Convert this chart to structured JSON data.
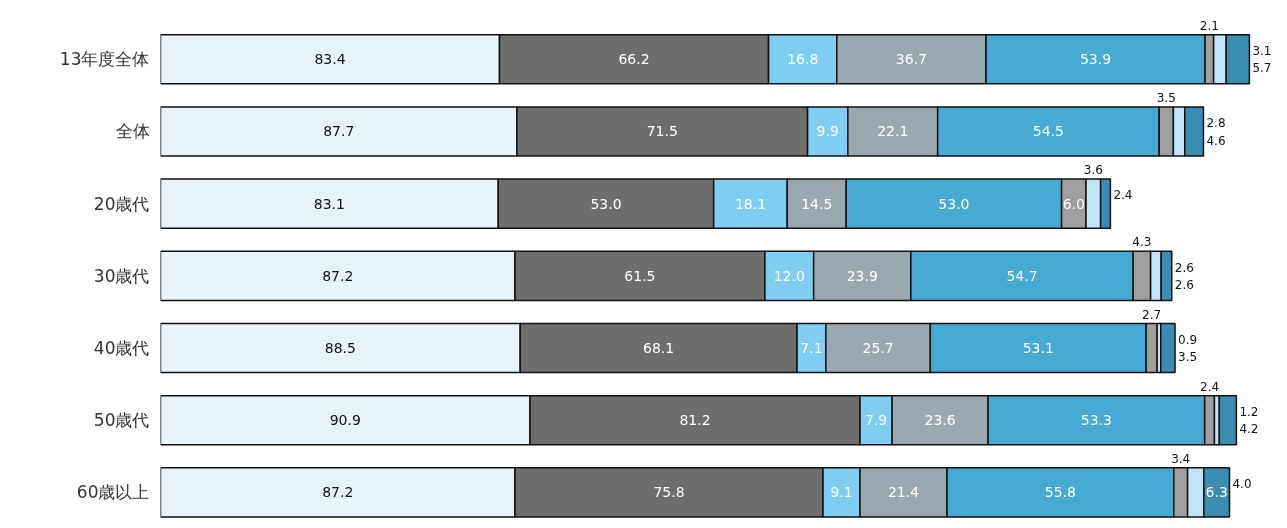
{
  "chart_data": {
    "type": "bar",
    "orientation": "horizontal",
    "stacked": true,
    "grid": false,
    "categories": [
      "13年度全体",
      "全体",
      "20歳代",
      "30歳代",
      "40歳代",
      "50歳代",
      "60歳以上"
    ],
    "series": [
      {
        "color": "#e8f4fb",
        "values": [
          83.4,
          87.7,
          83.1,
          87.2,
          88.5,
          90.9,
          87.2
        ],
        "value_labels": [
          "83.4",
          "87.7",
          "83.1",
          "87.2",
          "88.5",
          "90.9",
          "87.2"
        ]
      },
      {
        "color": "#6e6e6e",
        "values": [
          66.2,
          71.5,
          53.0,
          61.5,
          68.1,
          81.2,
          75.8
        ],
        "value_labels": [
          "66.2",
          "71.5",
          "53.0",
          "61.5",
          "68.1",
          "81.2",
          "75.8"
        ]
      },
      {
        "color": "#80cdf2",
        "values": [
          16.8,
          9.9,
          18.1,
          12.0,
          7.1,
          7.9,
          9.1
        ],
        "value_labels": [
          "16.8",
          "9.9",
          "18.1",
          "12.0",
          "7.1",
          "7.9",
          "9.1"
        ]
      },
      {
        "color": "#9aa9b1",
        "values": [
          36.7,
          22.1,
          14.5,
          23.9,
          25.7,
          23.6,
          21.4
        ],
        "value_labels": [
          "36.7",
          "22.1",
          "14.5",
          "23.9",
          "25.7",
          "23.6",
          "21.4"
        ]
      },
      {
        "color": "#47aad2",
        "values": [
          53.9,
          54.5,
          53.0,
          54.7,
          53.1,
          53.3,
          55.8
        ],
        "value_labels": [
          "53.9",
          "54.5",
          "53.0",
          "54.7",
          "53.1",
          "53.3",
          "55.8"
        ]
      },
      {
        "color": "#a0a0a0",
        "values": [
          2.1,
          3.5,
          6.0,
          4.3,
          2.7,
          2.4,
          3.4
        ],
        "value_labels": [
          "2.1",
          "3.5",
          "6.0",
          "4.3",
          "2.7",
          "2.4",
          "3.4"
        ]
      },
      {
        "color": "#c0e5f8",
        "values": [
          3.1,
          2.8,
          3.6,
          2.6,
          0.9,
          1.2,
          4.0
        ],
        "value_labels": [
          "3.1",
          "2.8",
          "3.6",
          "2.6",
          "0.9",
          "1.2",
          "4.0"
        ]
      },
      {
        "color": "#3a8db0",
        "values": [
          5.7,
          4.6,
          2.4,
          2.6,
          3.5,
          4.2,
          6.3
        ],
        "value_labels": [
          "5.7",
          "4.6",
          "2.4",
          "2.6",
          "3.5",
          "4.2",
          "6.3"
        ]
      }
    ]
  }
}
